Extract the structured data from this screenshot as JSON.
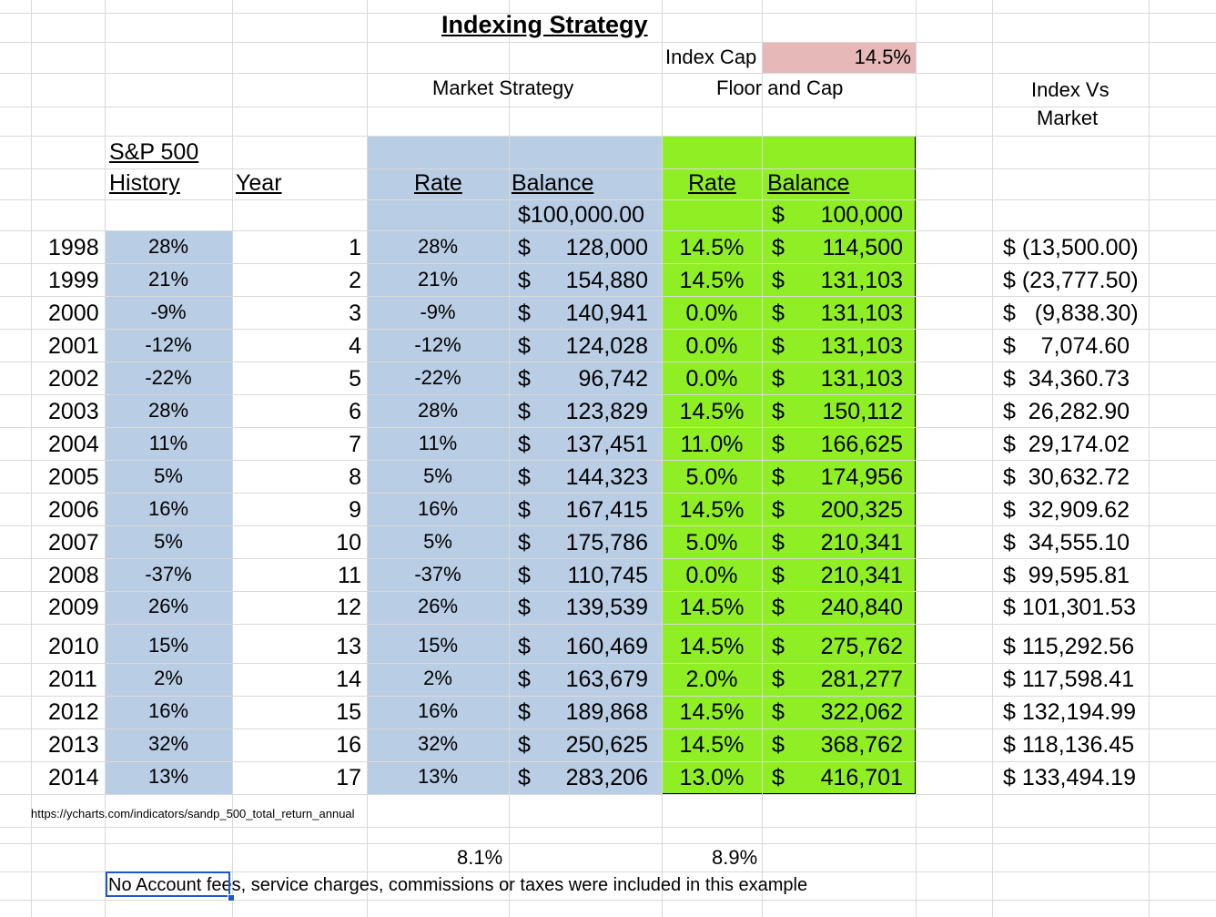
{
  "title": "Indexing Strategy",
  "index_cap": {
    "label": "Index Cap",
    "value": "14.5%"
  },
  "headers": {
    "market_strategy": "Market Strategy",
    "floor_and_cap": "Floor and Cap",
    "index_vs_market_1": "Index Vs",
    "index_vs_market_2": "Market",
    "sp500_1": "S&P 500",
    "sp500_2": "History",
    "year": "Year",
    "market_rate": "Rate",
    "market_balance": "Balance",
    "index_rate": "Rate",
    "index_balance": "Balance"
  },
  "starting": {
    "market_balance": "$100,000.00",
    "index_dollar": "$",
    "index_balance": "100,000"
  },
  "currency_symbol": "$",
  "rows": [
    {
      "year": "1998",
      "sp": "28%",
      "n": "1",
      "mrate": "28%",
      "mbal": "128,000",
      "irate": "14.5%",
      "ibal": "114,500",
      "diff": "$ (13,500.00)"
    },
    {
      "year": "1999",
      "sp": "21%",
      "n": "2",
      "mrate": "21%",
      "mbal": "154,880",
      "irate": "14.5%",
      "ibal": "131,103",
      "diff": "$ (23,777.50)"
    },
    {
      "year": "2000",
      "sp": "-9%",
      "n": "3",
      "mrate": "-9%",
      "mbal": "140,941",
      "irate": "0.0%",
      "ibal": "131,103",
      "diff": "$   (9,838.30)"
    },
    {
      "year": "2001",
      "sp": "-12%",
      "n": "4",
      "mrate": "-12%",
      "mbal": "124,028",
      "irate": "0.0%",
      "ibal": "131,103",
      "diff": "$    7,074.60"
    },
    {
      "year": "2002",
      "sp": "-22%",
      "n": "5",
      "mrate": "-22%",
      "mbal": "96,742",
      "irate": "0.0%",
      "ibal": "131,103",
      "diff": "$  34,360.73"
    },
    {
      "year": "2003",
      "sp": "28%",
      "n": "6",
      "mrate": "28%",
      "mbal": "123,829",
      "irate": "14.5%",
      "ibal": "150,112",
      "diff": "$  26,282.90"
    },
    {
      "year": "2004",
      "sp": "11%",
      "n": "7",
      "mrate": "11%",
      "mbal": "137,451",
      "irate": "11.0%",
      "ibal": "166,625",
      "diff": "$  29,174.02"
    },
    {
      "year": "2005",
      "sp": "5%",
      "n": "8",
      "mrate": "5%",
      "mbal": "144,323",
      "irate": "5.0%",
      "ibal": "174,956",
      "diff": "$  30,632.72"
    },
    {
      "year": "2006",
      "sp": "16%",
      "n": "9",
      "mrate": "16%",
      "mbal": "167,415",
      "irate": "14.5%",
      "ibal": "200,325",
      "diff": "$  32,909.62"
    },
    {
      "year": "2007",
      "sp": "5%",
      "n": "10",
      "mrate": "5%",
      "mbal": "175,786",
      "irate": "5.0%",
      "ibal": "210,341",
      "diff": "$  34,555.10"
    },
    {
      "year": "2008",
      "sp": "-37%",
      "n": "11",
      "mrate": "-37%",
      "mbal": "110,745",
      "irate": "0.0%",
      "ibal": "210,341",
      "diff": "$  99,595.81"
    },
    {
      "year": "2009",
      "sp": "26%",
      "n": "12",
      "mrate": "26%",
      "mbal": "139,539",
      "irate": "14.5%",
      "ibal": "240,840",
      "diff": "$ 101,301.53"
    },
    {
      "year": "2010",
      "sp": "15%",
      "n": "13",
      "mrate": "15%",
      "mbal": "160,469",
      "irate": "14.5%",
      "ibal": "275,762",
      "diff": "$ 115,292.56"
    },
    {
      "year": "2011",
      "sp": "2%",
      "n": "14",
      "mrate": "2%",
      "mbal": "163,679",
      "irate": "2.0%",
      "ibal": "281,277",
      "diff": "$ 117,598.41"
    },
    {
      "year": "2012",
      "sp": "16%",
      "n": "15",
      "mrate": "16%",
      "mbal": "189,868",
      "irate": "14.5%",
      "ibal": "322,062",
      "diff": "$ 132,194.99"
    },
    {
      "year": "2013",
      "sp": "32%",
      "n": "16",
      "mrate": "32%",
      "mbal": "250,625",
      "irate": "14.5%",
      "ibal": "368,762",
      "diff": "$ 118,136.45"
    },
    {
      "year": "2014",
      "sp": "13%",
      "n": "17",
      "mrate": "13%",
      "mbal": "283,206",
      "irate": "13.0%",
      "ibal": "416,701",
      "diff": "$ 133,494.19"
    }
  ],
  "source_url": "https://ycharts.com/indicators/sandp_500_total_return_annual",
  "average_market": "8.1%",
  "average_index": "8.9%",
  "footnote": "No Account fees, service charges, commissions or taxes were included in this example",
  "colors": {
    "blue_fill": "#b9cde5",
    "green_fill": "#8fef24",
    "pink_fill": "#e6b8b7",
    "gridline": "#d9d9d9",
    "selection": "#1f56c8"
  }
}
